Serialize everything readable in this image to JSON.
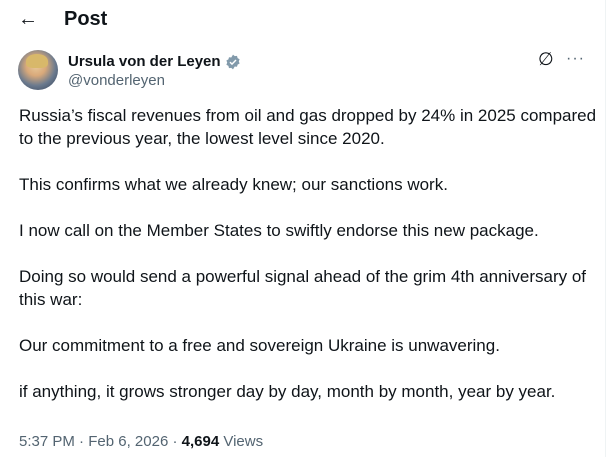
{
  "header": {
    "title": "Post",
    "back_icon": "arrow-left-icon"
  },
  "author": {
    "name": "Ursula von der Leyen",
    "handle": "@vonderleyen",
    "badge_color": "#829aab"
  },
  "post": {
    "paragraphs": [
      "Russia’s fiscal revenues from oil and gas dropped by 24% in 2025 compared to the previous year, the lowest level since 2020.",
      "This confirms what we already knew; our sanctions work.",
      "I now call on the Member States to swiftly endorse this new package.",
      "Doing so would send a powerful signal ahead of the grim 4th anniversary of this war:",
      "Our commitment to a free and sovereign Ukraine is unwavering.",
      "if anything, it grows stronger day by day, month by month, year by year."
    ]
  },
  "meta": {
    "time": "5:37 PM",
    "date": "Feb 6, 2026",
    "separator": " · ",
    "views_count": "4,694",
    "views_label": " Views"
  }
}
